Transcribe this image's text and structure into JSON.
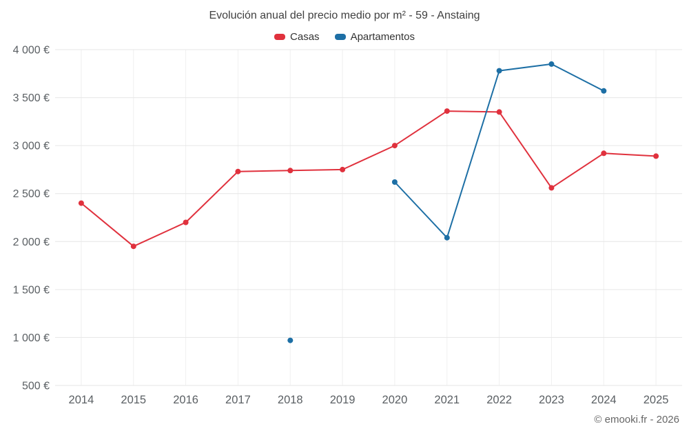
{
  "chart_data": {
    "type": "line",
    "title": "Evolución anual del precio medio por m² - 59 - Anstaing",
    "categories": [
      "2014",
      "2015",
      "2016",
      "2017",
      "2018",
      "2019",
      "2020",
      "2021",
      "2022",
      "2023",
      "2024",
      "2025"
    ],
    "series": [
      {
        "name": "Casas",
        "color": "#e0313d",
        "values": [
          2400,
          1950,
          2200,
          2730,
          2740,
          2750,
          3000,
          3360,
          3350,
          2560,
          2920,
          2890
        ]
      },
      {
        "name": "Apartamentos",
        "color": "#1d6fa5",
        "values": [
          null,
          null,
          null,
          null,
          970,
          null,
          2620,
          2040,
          3780,
          3850,
          3570,
          null
        ]
      }
    ],
    "ylim": [
      500,
      4000
    ],
    "ytick_step": 500,
    "ytick_suffix": " €",
    "grid": true,
    "legend_position": "top"
  },
  "credit": "© emooki.fr - 2026",
  "colors": {
    "grid_major": "#e6e6e6",
    "grid_minor_vertical": "#f0f0f0",
    "axis_text": "#5a5f63",
    "title_text": "#404040"
  }
}
